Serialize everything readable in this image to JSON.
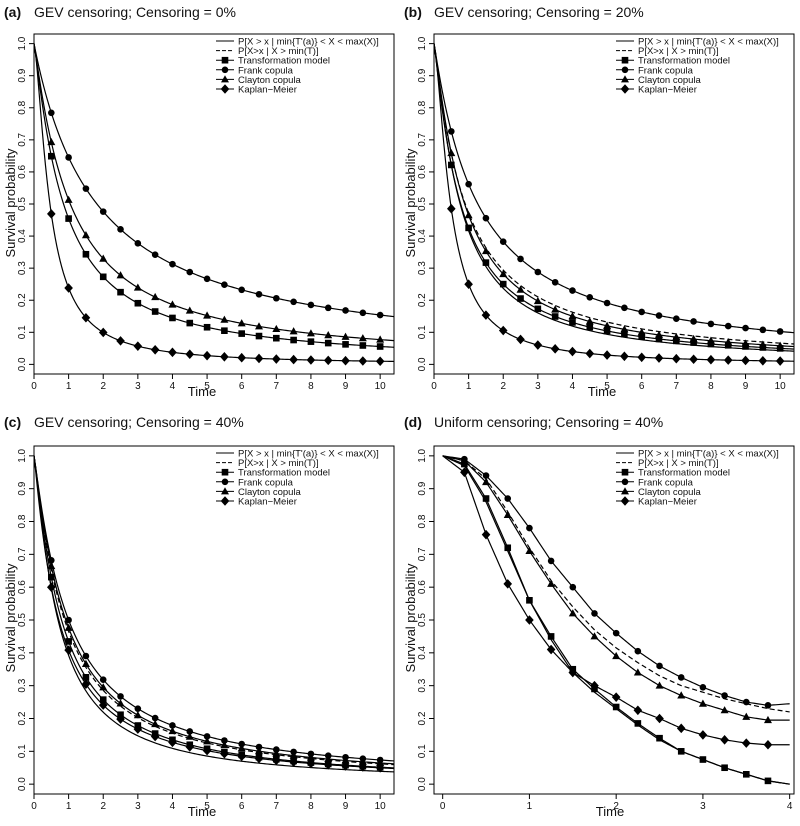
{
  "figure": {
    "legend_labels": [
      "P[X > x | min{T'(a)} < X < max(X)]",
      "P[X>x | X > min(T)]",
      "Transformation model",
      "Frank copula",
      "Clayton copula",
      "Kaplan−Meier"
    ]
  },
  "chart_data": [
    {
      "type": "line",
      "panel_label": "(a)",
      "title": "GEV censoring; Censoring = 0%",
      "xlabel": "Time",
      "ylabel": "Survival probability",
      "xlim": [
        0,
        10.4
      ],
      "ylim": [
        -0.03,
        1.03
      ],
      "xticks": [
        0,
        1,
        2,
        3,
        4,
        5,
        6,
        7,
        8,
        9,
        10
      ],
      "yticks": [
        0.0,
        0.1,
        0.2,
        0.3,
        0.4,
        0.5,
        0.6,
        0.7,
        0.8,
        0.9,
        1.0
      ],
      "legend_position": "top-right",
      "series": [
        {
          "name": "Transformation model",
          "style": "solid",
          "marker": "square",
          "curve": {
            "a": 1.2,
            "p": 1.15
          },
          "markers_x": [
            0.5,
            1.0,
            1.5,
            2.0,
            2.5,
            3.0,
            3.5,
            4.0,
            4.5,
            5.0,
            5.5,
            6.0,
            6.5,
            7.0,
            7.5,
            8.0,
            8.5,
            9.0,
            9.5,
            10.0
          ]
        },
        {
          "name": "Frank copula",
          "style": "solid",
          "marker": "circle",
          "curve": {
            "a": 0.55,
            "p": 1.0
          },
          "markers_x": [
            0.5,
            1.0,
            1.5,
            2.0,
            2.5,
            3.0,
            3.5,
            4.0,
            4.5,
            5.0,
            5.5,
            6.0,
            6.5,
            7.0,
            7.5,
            8.0,
            8.5,
            9.0,
            9.5,
            10.0
          ]
        },
        {
          "name": "Clayton copula",
          "style": "solid",
          "marker": "triangle",
          "curve": {
            "a": 0.95,
            "p": 1.1
          },
          "markers_x": [
            0.5,
            1.0,
            1.5,
            2.0,
            2.5,
            3.0,
            3.5,
            4.0,
            4.5,
            5.0,
            5.5,
            6.0,
            6.5,
            7.0,
            7.5,
            8.0,
            8.5,
            9.0,
            9.5,
            10.0
          ]
        },
        {
          "name": "Kaplan−Meier",
          "style": "solid",
          "marker": "diamond",
          "curve": {
            "a": 3.2,
            "p": 1.5
          },
          "markers_x": [
            0.5,
            1.0,
            1.5,
            2.0,
            2.5,
            3.0,
            3.5,
            4.0,
            4.5,
            5.0,
            5.5,
            6.0,
            6.5,
            7.0,
            7.5,
            8.0,
            8.5,
            9.0,
            9.5,
            10.0
          ]
        }
      ]
    },
    {
      "type": "line",
      "panel_label": "(b)",
      "title": "GEV censoring; Censoring = 20%",
      "xlabel": "Time",
      "ylabel": "Survival probability",
      "xlim": [
        0,
        10.4
      ],
      "ylim": [
        -0.03,
        1.03
      ],
      "xticks": [
        0,
        1,
        2,
        3,
        4,
        5,
        6,
        7,
        8,
        9,
        10
      ],
      "yticks": [
        0.0,
        0.1,
        0.2,
        0.3,
        0.4,
        0.5,
        0.6,
        0.7,
        0.8,
        0.9,
        1.0
      ],
      "legend_position": "top-right",
      "series": [
        {
          "name": "P[X > x | min{T'(a)} < X < max(X)]",
          "style": "solid",
          "marker": "none",
          "curve": {
            "a": 1.4,
            "p": 1.2
          },
          "markers_x": []
        },
        {
          "name": "P[X>x | X > min(T)]",
          "style": "dashed",
          "marker": "none",
          "curve": {
            "a": 1.12,
            "p": 1.1
          },
          "markers_x": []
        },
        {
          "name": "Transformation model",
          "style": "solid",
          "marker": "square",
          "curve": {
            "a": 1.35,
            "p": 1.15
          },
          "markers_x": [
            0.5,
            1.0,
            1.5,
            2.0,
            2.5,
            3.0,
            3.5,
            4.0,
            4.5,
            5.0,
            5.5,
            6.0,
            6.5,
            7.0,
            7.5,
            8.0,
            8.5,
            9.0,
            9.5,
            10.0
          ]
        },
        {
          "name": "Frank copula",
          "style": "solid",
          "marker": "circle",
          "curve": {
            "a": 0.78,
            "p": 1.05
          },
          "markers_x": [
            0.5,
            1.0,
            1.5,
            2.0,
            2.5,
            3.0,
            3.5,
            4.0,
            4.5,
            5.0,
            5.5,
            6.0,
            6.5,
            7.0,
            7.5,
            8.0,
            8.5,
            9.0,
            9.5,
            10.0
          ]
        },
        {
          "name": "Clayton copula",
          "style": "solid",
          "marker": "triangle",
          "curve": {
            "a": 1.15,
            "p": 1.15
          },
          "markers_x": [
            0.5,
            1.0,
            1.5,
            2.0,
            2.5,
            3.0,
            3.5,
            4.0,
            4.5,
            5.0,
            5.5,
            6.0,
            6.5,
            7.0,
            7.5,
            8.0,
            8.5,
            9.0,
            9.5,
            10.0
          ]
        },
        {
          "name": "Kaplan−Meier",
          "style": "solid",
          "marker": "diamond",
          "curve": {
            "a": 3.0,
            "p": 1.5
          },
          "markers_x": [
            0.5,
            1.0,
            1.5,
            2.0,
            2.5,
            3.0,
            3.5,
            4.0,
            4.5,
            5.0,
            5.5,
            6.0,
            6.5,
            7.0,
            7.5,
            8.0,
            8.5,
            9.0,
            9.5,
            10.0
          ]
        }
      ]
    },
    {
      "type": "line",
      "panel_label": "(c)",
      "title": "GEV censoring; Censoring = 40%",
      "xlabel": "Time",
      "ylabel": "Survival probability",
      "xlim": [
        0,
        10.4
      ],
      "ylim": [
        -0.03,
        1.03
      ],
      "xticks": [
        0,
        1,
        2,
        3,
        4,
        5,
        6,
        7,
        8,
        9,
        10
      ],
      "yticks": [
        0.0,
        0.1,
        0.2,
        0.3,
        0.4,
        0.5,
        0.6,
        0.7,
        0.8,
        0.9,
        1.0
      ],
      "legend_position": "top-right",
      "series": [
        {
          "name": "P[X > x | min{T'(a)} < X < max(X)]",
          "style": "solid",
          "marker": "none",
          "curve": {
            "a": 1.55,
            "p": 1.2
          },
          "markers_x": []
        },
        {
          "name": "P[X>x | X > min(T)]",
          "style": "dashed",
          "marker": "none",
          "curve": {
            "a": 1.15,
            "p": 1.12
          },
          "markers_x": []
        },
        {
          "name": "Transformation model",
          "style": "solid",
          "marker": "square",
          "curve": {
            "a": 1.3,
            "p": 1.15
          },
          "markers_x": [
            0.5,
            1.0,
            1.5,
            2.0,
            2.5,
            3.0,
            3.5,
            4.0,
            4.5,
            5.0,
            5.5,
            6.0,
            6.5,
            7.0,
            7.5,
            8.0,
            8.5,
            9.0,
            9.5,
            10.0
          ]
        },
        {
          "name": "Frank copula",
          "style": "solid",
          "marker": "circle",
          "curve": {
            "a": 1.0,
            "p": 1.1
          },
          "markers_x": [
            0.5,
            1.0,
            1.5,
            2.0,
            2.5,
            3.0,
            3.5,
            4.0,
            4.5,
            5.0,
            5.5,
            6.0,
            6.5,
            7.0,
            7.5,
            8.0,
            8.5,
            9.0,
            9.5,
            10.0
          ]
        },
        {
          "name": "Clayton copula",
          "style": "solid",
          "marker": "triangle",
          "curve": {
            "a": 1.1,
            "p": 1.12
          },
          "markers_x": [
            0.5,
            1.0,
            1.5,
            2.0,
            2.5,
            3.0,
            3.5,
            4.0,
            4.5,
            5.0,
            5.5,
            6.0,
            6.5,
            7.0,
            7.5,
            8.0,
            8.5,
            9.0,
            9.5,
            10.0
          ]
        },
        {
          "name": "Kaplan−Meier",
          "style": "solid",
          "marker": "diamond",
          "curve": {
            "a": 1.45,
            "p": 1.12
          },
          "markers_x": [
            0.5,
            1.0,
            1.5,
            2.0,
            2.5,
            3.0,
            3.5,
            4.0,
            4.5,
            5.0,
            5.5,
            6.0,
            6.5,
            7.0,
            7.5,
            8.0,
            8.5,
            9.0,
            9.5,
            10.0
          ]
        }
      ]
    },
    {
      "type": "line",
      "panel_label": "(d)",
      "title": "Uniform censoring; Censoring = 40%",
      "xlabel": "Time",
      "ylabel": "Survival probability",
      "xlim": [
        -0.1,
        4.05
      ],
      "ylim": [
        -0.03,
        1.03
      ],
      "xticks": [
        0,
        1,
        2,
        3,
        4
      ],
      "yticks": [
        0.0,
        0.1,
        0.2,
        0.3,
        0.4,
        0.5,
        0.6,
        0.7,
        0.8,
        0.9,
        1.0
      ],
      "legend_position": "top-right",
      "series": [
        {
          "name": "P[X > x | min{T'(a)} < X < max(X)]",
          "style": "solid",
          "marker": "none",
          "points": [
            [
              0,
              1.0
            ],
            [
              0.25,
              0.97
            ],
            [
              0.5,
              0.86
            ],
            [
              0.75,
              0.71
            ],
            [
              1.0,
              0.56
            ],
            [
              1.25,
              0.44
            ],
            [
              1.5,
              0.34
            ],
            [
              1.75,
              0.28
            ],
            [
              2.0,
              0.23
            ],
            [
              2.25,
              0.18
            ],
            [
              2.5,
              0.135
            ],
            [
              2.75,
              0.1
            ],
            [
              3.0,
              0.075
            ],
            [
              3.25,
              0.05
            ],
            [
              3.5,
              0.03
            ],
            [
              3.75,
              0.01
            ],
            [
              4.0,
              0.0
            ]
          ]
        },
        {
          "name": "P[X>x | X > min(T)]",
          "style": "dashed",
          "marker": "none",
          "points": [
            [
              0,
              1.0
            ],
            [
              0.25,
              0.985
            ],
            [
              0.5,
              0.93
            ],
            [
              0.75,
              0.83
            ],
            [
              1.0,
              0.72
            ],
            [
              1.25,
              0.62
            ],
            [
              1.5,
              0.54
            ],
            [
              1.75,
              0.47
            ],
            [
              2.0,
              0.415
            ],
            [
              2.25,
              0.37
            ],
            [
              2.5,
              0.33
            ],
            [
              2.75,
              0.3
            ],
            [
              3.0,
              0.28
            ],
            [
              3.25,
              0.26
            ],
            [
              3.5,
              0.245
            ],
            [
              3.75,
              0.23
            ],
            [
              4.0,
              0.22
            ]
          ]
        },
        {
          "name": "Transformation model",
          "style": "solid",
          "marker": "square",
          "points": [
            [
              0,
              1.0
            ],
            [
              0.25,
              0.975
            ],
            [
              0.5,
              0.87
            ],
            [
              0.75,
              0.72
            ],
            [
              1.0,
              0.56
            ],
            [
              1.25,
              0.45
            ],
            [
              1.5,
              0.35
            ],
            [
              1.75,
              0.29
            ],
            [
              2.0,
              0.235
            ],
            [
              2.25,
              0.185
            ],
            [
              2.5,
              0.14
            ],
            [
              2.75,
              0.1
            ],
            [
              3.0,
              0.075
            ],
            [
              3.25,
              0.05
            ],
            [
              3.5,
              0.03
            ],
            [
              3.75,
              0.01
            ],
            [
              4.0,
              0.0
            ]
          ],
          "markers_x": [
            0.25,
            0.5,
            0.75,
            1.0,
            1.25,
            1.5,
            1.75,
            2.0,
            2.25,
            2.5,
            2.75,
            3.0,
            3.25,
            3.5,
            3.75
          ]
        },
        {
          "name": "Frank copula",
          "style": "solid",
          "marker": "circle",
          "points": [
            [
              0,
              1.0
            ],
            [
              0.25,
              0.99
            ],
            [
              0.5,
              0.94
            ],
            [
              0.75,
              0.87
            ],
            [
              1.0,
              0.78
            ],
            [
              1.25,
              0.68
            ],
            [
              1.5,
              0.6
            ],
            [
              1.75,
              0.52
            ],
            [
              2.0,
              0.46
            ],
            [
              2.25,
              0.405
            ],
            [
              2.5,
              0.36
            ],
            [
              2.75,
              0.325
            ],
            [
              3.0,
              0.295
            ],
            [
              3.25,
              0.27
            ],
            [
              3.5,
              0.25
            ],
            [
              3.75,
              0.24
            ],
            [
              4.0,
              0.245
            ]
          ],
          "markers_x": [
            0.25,
            0.5,
            0.75,
            1.0,
            1.25,
            1.5,
            1.75,
            2.0,
            2.25,
            2.5,
            2.75,
            3.0,
            3.25,
            3.5,
            3.75
          ]
        },
        {
          "name": "Clayton copula",
          "style": "solid",
          "marker": "triangle",
          "points": [
            [
              0,
              1.0
            ],
            [
              0.25,
              0.985
            ],
            [
              0.5,
              0.92
            ],
            [
              0.75,
              0.82
            ],
            [
              1.0,
              0.71
            ],
            [
              1.25,
              0.61
            ],
            [
              1.5,
              0.52
            ],
            [
              1.75,
              0.45
            ],
            [
              2.0,
              0.39
            ],
            [
              2.25,
              0.34
            ],
            [
              2.5,
              0.3
            ],
            [
              2.75,
              0.27
            ],
            [
              3.0,
              0.245
            ],
            [
              3.25,
              0.225
            ],
            [
              3.5,
              0.205
            ],
            [
              3.75,
              0.195
            ],
            [
              4.0,
              0.195
            ]
          ],
          "markers_x": [
            0.25,
            0.5,
            0.75,
            1.0,
            1.25,
            1.5,
            1.75,
            2.0,
            2.25,
            2.5,
            2.75,
            3.0,
            3.25,
            3.5,
            3.75
          ]
        },
        {
          "name": "Kaplan−Meier",
          "style": "solid",
          "marker": "diamond",
          "points": [
            [
              0,
              1.0
            ],
            [
              0.25,
              0.95
            ],
            [
              0.5,
              0.76
            ],
            [
              0.75,
              0.61
            ],
            [
              1.0,
              0.5
            ],
            [
              1.25,
              0.41
            ],
            [
              1.5,
              0.34
            ],
            [
              1.75,
              0.3
            ],
            [
              2.0,
              0.265
            ],
            [
              2.25,
              0.225
            ],
            [
              2.5,
              0.2
            ],
            [
              2.75,
              0.17
            ],
            [
              3.0,
              0.15
            ],
            [
              3.25,
              0.135
            ],
            [
              3.5,
              0.125
            ],
            [
              3.75,
              0.12
            ],
            [
              4.0,
              0.12
            ]
          ],
          "markers_x": [
            0.25,
            0.5,
            0.75,
            1.0,
            1.25,
            1.5,
            1.75,
            2.0,
            2.25,
            2.5,
            2.75,
            3.0,
            3.25,
            3.5,
            3.75
          ]
        }
      ]
    }
  ]
}
